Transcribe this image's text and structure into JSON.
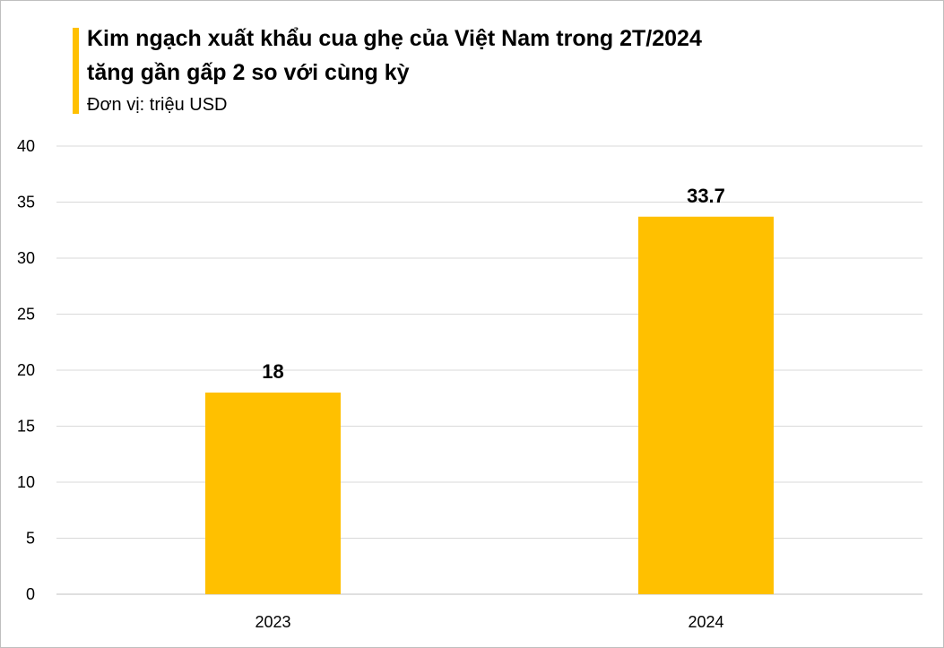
{
  "chart_data": {
    "type": "bar",
    "title": "Kim ngạch xuất khẩu cua ghẹ của Việt Nam trong 2T/2024",
    "title_line2": "tăng gần gấp 2 so với cùng kỳ",
    "subtitle": "Đơn vị: triệu USD",
    "categories": [
      "2023",
      "2024"
    ],
    "values": [
      18,
      33.7
    ],
    "data_labels": [
      "18",
      "33.7"
    ],
    "xlabel": "",
    "ylabel": "",
    "ylim": [
      0,
      40
    ],
    "yticks": [
      0,
      5,
      10,
      15,
      20,
      25,
      30,
      35,
      40
    ],
    "grid": true,
    "bar_color": "#FFC000",
    "accent_color": "#FFC000"
  }
}
